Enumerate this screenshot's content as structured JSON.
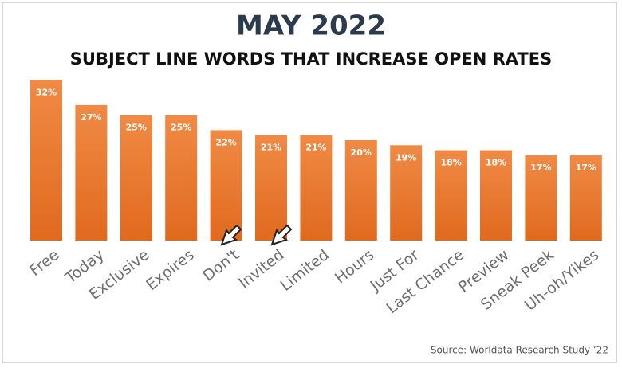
{
  "chart_data": {
    "type": "bar",
    "title": "MAY 2022",
    "subtitle": "SUBJECT LINE WORDS THAT INCREASE OPEN RATES",
    "categories": [
      "Free",
      "Today",
      "Exclusive",
      "Expires",
      "Don't",
      "Invited",
      "Limited",
      "Hours",
      "Just For",
      "Last Chance",
      "Preview",
      "Sneak Peek",
      "Uh-oh/Yikes"
    ],
    "values": [
      32,
      27,
      25,
      25,
      22,
      21,
      21,
      20,
      19,
      18,
      18,
      17,
      17
    ],
    "value_labels": [
      "32%",
      "27%",
      "25%",
      "25%",
      "22%",
      "21%",
      "21%",
      "20%",
      "19%",
      "18%",
      "18%",
      "17%",
      "17%"
    ],
    "color": "#ed7d31",
    "source": "Source: Worldata Research Study ’22"
  }
}
